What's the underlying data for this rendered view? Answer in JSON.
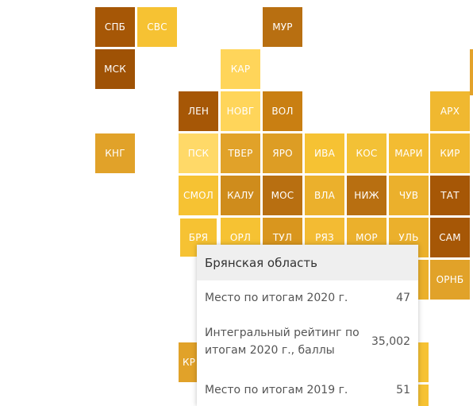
{
  "colors": {
    "c1": "#a65706",
    "c2": "#f6bf32",
    "c3": "#ffd55a",
    "c4": "#e1a229",
    "c5": "#d28e1b",
    "c6": "#b86f11"
  },
  "regions": [
    {
      "id": "spb",
      "label": "СПБ",
      "color": "#a65706"
    },
    {
      "id": "svs",
      "label": "СВС",
      "color": "#f6c233"
    },
    {
      "id": "mur",
      "label": "МУР",
      "color": "#b86f11"
    },
    {
      "id": "msk",
      "label": "МСК",
      "color": "#9f5205"
    },
    {
      "id": "kar",
      "label": "КАР",
      "color": "#ffd55a"
    },
    {
      "id": "len",
      "label": "ЛЕН",
      "color": "#a65706"
    },
    {
      "id": "novg",
      "label": "НОВГ",
      "color": "#ffd55a"
    },
    {
      "id": "vol",
      "label": "ВОЛ",
      "color": "#c97f12"
    },
    {
      "id": "arh",
      "label": "АРХ",
      "color": "#f0b830"
    },
    {
      "id": "kng",
      "label": "КНГ",
      "color": "#e1a229"
    },
    {
      "id": "psk",
      "label": "ПСК",
      "color": "#ffd968"
    },
    {
      "id": "tver",
      "label": "ТВЕР",
      "color": "#e1a229"
    },
    {
      "id": "yaro",
      "label": "ЯРО",
      "color": "#dd9d24"
    },
    {
      "id": "iva",
      "label": "ИВА",
      "color": "#f6c233"
    },
    {
      "id": "kos",
      "label": "КОС",
      "color": "#f3c136"
    },
    {
      "id": "mari",
      "label": "МАРИ",
      "color": "#f3bc32"
    },
    {
      "id": "kir",
      "label": "КИР",
      "color": "#f0b830"
    },
    {
      "id": "smol",
      "label": "СМОЛ",
      "color": "#f6c233"
    },
    {
      "id": "kalu",
      "label": "КАЛУ",
      "color": "#cf8c1c"
    },
    {
      "id": "mos",
      "label": "МОС",
      "color": "#b86f11"
    },
    {
      "id": "vla",
      "label": "ВЛА",
      "color": "#ebb02c"
    },
    {
      "id": "nizh",
      "label": "НИЖ",
      "color": "#b86f11"
    },
    {
      "id": "chuv",
      "label": "ЧУВ",
      "color": "#ebb02c"
    },
    {
      "id": "tat",
      "label": "ТАТ",
      "color": "#a65706"
    },
    {
      "id": "brya",
      "label": "БРЯ",
      "color": "#f6c233"
    },
    {
      "id": "orl",
      "label": "ОРЛ",
      "color": "#f6c233"
    },
    {
      "id": "tul",
      "label": "ТУЛ",
      "color": "#d9961e"
    },
    {
      "id": "ryaz",
      "label": "РЯЗ",
      "color": "#f3bb33"
    },
    {
      "id": "mor",
      "label": "МОР",
      "color": "#ebb02c"
    },
    {
      "id": "ul",
      "label": "УЛЬ",
      "color": "#ebb02c"
    },
    {
      "id": "sam",
      "label": "САМ",
      "color": "#a65706"
    },
    {
      "id": "ornb",
      "label": "ОРНБ",
      "color": "#e1a229"
    },
    {
      "id": "kr",
      "label": "КР",
      "color": "#e1a229"
    }
  ],
  "tooltip": {
    "title": "Брянская область",
    "rows": [
      {
        "label": "Место по итогам 2020 г.",
        "value": "47"
      },
      {
        "label": "Интегральный рейтинг по итогам 2020 г., баллы",
        "value": "35,002"
      },
      {
        "label": "Место по итогам 2019 г.",
        "value": "51"
      }
    ]
  }
}
